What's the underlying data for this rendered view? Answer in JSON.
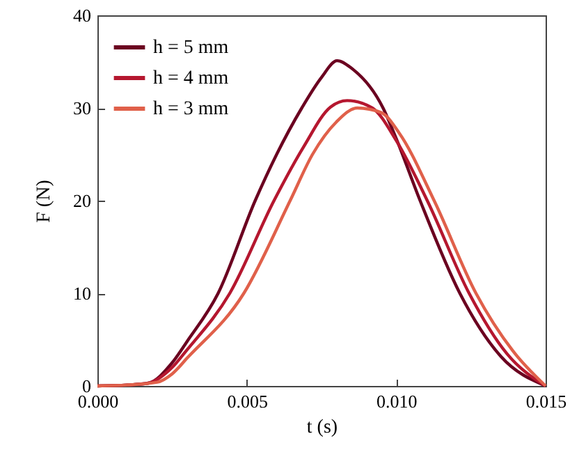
{
  "chart_data": {
    "type": "line",
    "xlabel": "t (s)",
    "ylabel": "F (N)",
    "xlim": [
      0,
      0.015
    ],
    "xticks": [
      {
        "value": 0,
        "label": "0.000"
      },
      {
        "value": 0.005,
        "label": "0.005"
      },
      {
        "value": 0.01,
        "label": "0.010"
      },
      {
        "value": 0.015,
        "label": "0.015"
      }
    ],
    "ylim": [
      0,
      40
    ],
    "yticks": [
      0,
      10,
      20,
      30,
      40
    ],
    "grid": false,
    "legend": "top left",
    "marker": "none",
    "line_style": "solid",
    "series": [
      {
        "name": "h = 5 mm",
        "color": "#6b0020",
        "x": [
          0,
          0.001,
          0.0017,
          0.0025,
          0.003,
          0.00404,
          0.00528,
          0.006,
          0.00684,
          0.0075,
          0.00802,
          0.0085,
          0.00956,
          0.01,
          0.0108,
          0.01213,
          0.0135,
          0.015
        ],
        "values": [
          0,
          0.1,
          0.3,
          2.5,
          4.8,
          10,
          20,
          25,
          30,
          33.3,
          35.1,
          34.3,
          30,
          26.7,
          20,
          10,
          3.2,
          0
        ]
      },
      {
        "name": "h = 4 mm",
        "color": "#b5172f",
        "x": [
          0,
          0.001,
          0.0017,
          0.0025,
          0.003,
          0.00443,
          0.00591,
          0.0069,
          0.0078,
          0.00836,
          0.0092,
          0.01,
          0.01104,
          0.01244,
          0.0137,
          0.015
        ],
        "values": [
          0,
          0.1,
          0.3,
          2,
          3.9,
          10,
          20,
          25.8,
          30.1,
          30.8,
          30,
          26.5,
          20,
          10,
          3.5,
          0
        ]
      },
      {
        "name": "h = 3 mm",
        "color": "#e0604a",
        "x": [
          0,
          0.001,
          0.002,
          0.0025,
          0.003,
          0.0049,
          0.00645,
          0.0072,
          0.008,
          0.0087,
          0.0095,
          0.0101,
          0.01127,
          0.01267,
          0.0139,
          0.015
        ],
        "values": [
          0,
          0.1,
          0.4,
          1.3,
          3,
          10,
          20,
          25,
          28.5,
          30,
          29.5,
          27.3,
          20,
          10,
          3.8,
          0
        ]
      }
    ]
  }
}
